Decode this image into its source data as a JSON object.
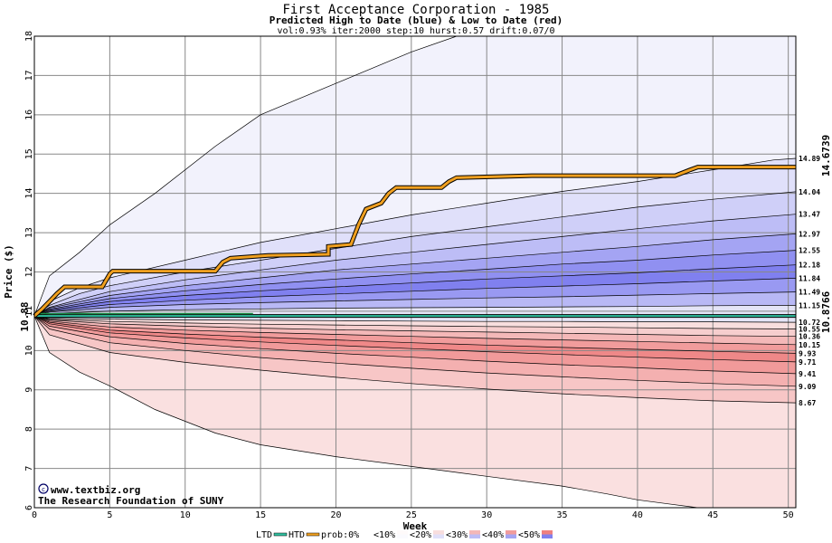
{
  "chart_data": {
    "type": "area",
    "title": "First Acceptance Corporation - 1985",
    "subtitle": "Predicted High to Date (blue) &  Low to Date (red)",
    "params": "vol:0.93% iter:2000 step:10 hurst:0.57 drift:0.07/0",
    "xlabel": "Week",
    "ylabel": "Price ($)",
    "xlim": [
      0,
      50.5
    ],
    "ylim": [
      6,
      18
    ],
    "x_ticks": [
      "0",
      "5",
      "10",
      "15",
      "20",
      "25",
      "30",
      "35",
      "40",
      "45",
      "50"
    ],
    "y_ticks": [
      "6",
      "7",
      "8",
      "9",
      "10",
      "11",
      "12",
      "13",
      "14",
      "15",
      "16",
      "17",
      "18"
    ],
    "grid": true,
    "start_price": 10.88,
    "start_price_label": "10.88",
    "high_quantiles": [
      {
        "prob": "0%",
        "label": "",
        "values": [
          [
            0,
            10.88
          ],
          [
            1,
            11.9
          ],
          [
            3,
            12.5
          ],
          [
            5,
            13.2
          ],
          [
            8,
            14
          ],
          [
            12,
            15.2
          ],
          [
            15,
            16
          ],
          [
            20,
            16.8
          ],
          [
            25,
            17.6
          ],
          [
            28,
            18
          ],
          [
            50.5,
            18
          ]
        ]
      },
      {
        "prob": "10%",
        "label": "14.89",
        "values": [
          [
            0,
            10.88
          ],
          [
            1,
            11.25
          ],
          [
            3,
            11.6
          ],
          [
            5,
            11.85
          ],
          [
            10,
            12.3
          ],
          [
            15,
            12.75
          ],
          [
            20,
            13.1
          ],
          [
            25,
            13.45
          ],
          [
            30,
            13.75
          ],
          [
            35,
            14.05
          ],
          [
            40,
            14.3
          ],
          [
            45,
            14.6
          ],
          [
            49,
            14.85
          ],
          [
            50.5,
            14.89
          ]
        ]
      },
      {
        "prob": "20%",
        "label": "14.04",
        "values": [
          [
            0,
            10.88
          ],
          [
            1,
            11.15
          ],
          [
            3,
            11.45
          ],
          [
            5,
            11.65
          ],
          [
            10,
            12
          ],
          [
            15,
            12.3
          ],
          [
            20,
            12.6
          ],
          [
            25,
            12.9
          ],
          [
            30,
            13.15
          ],
          [
            35,
            13.4
          ],
          [
            40,
            13.65
          ],
          [
            45,
            13.85
          ],
          [
            50.5,
            14.04
          ]
        ]
      },
      {
        "prob": "30%",
        "label": "13.47",
        "values": [
          [
            0,
            10.88
          ],
          [
            1,
            11.1
          ],
          [
            5,
            11.5
          ],
          [
            10,
            11.8
          ],
          [
            15,
            12.05
          ],
          [
            20,
            12.3
          ],
          [
            25,
            12.5
          ],
          [
            30,
            12.7
          ],
          [
            35,
            12.9
          ],
          [
            40,
            13.1
          ],
          [
            45,
            13.3
          ],
          [
            50.5,
            13.47
          ]
        ]
      },
      {
        "prob": "40%",
        "label": "12.97",
        "values": [
          [
            0,
            10.88
          ],
          [
            1,
            11.08
          ],
          [
            5,
            11.4
          ],
          [
            10,
            11.65
          ],
          [
            15,
            11.85
          ],
          [
            20,
            12.05
          ],
          [
            25,
            12.2
          ],
          [
            30,
            12.35
          ],
          [
            35,
            12.5
          ],
          [
            40,
            12.65
          ],
          [
            45,
            12.82
          ],
          [
            50.5,
            12.97
          ]
        ]
      },
      {
        "prob": "50%",
        "label": "12.55",
        "values": [
          [
            0,
            10.88
          ],
          [
            1,
            11.05
          ],
          [
            5,
            11.32
          ],
          [
            10,
            11.52
          ],
          [
            15,
            11.68
          ],
          [
            20,
            11.82
          ],
          [
            25,
            11.95
          ],
          [
            30,
            12.07
          ],
          [
            35,
            12.2
          ],
          [
            40,
            12.3
          ],
          [
            45,
            12.43
          ],
          [
            50.5,
            12.55
          ]
        ]
      },
      {
        "prob": "60%",
        "label": "12.18",
        "values": [
          [
            0,
            10.88
          ],
          [
            1,
            11.03
          ],
          [
            5,
            11.25
          ],
          [
            10,
            11.4
          ],
          [
            15,
            11.52
          ],
          [
            20,
            11.62
          ],
          [
            25,
            11.72
          ],
          [
            30,
            11.82
          ],
          [
            35,
            11.9
          ],
          [
            40,
            11.98
          ],
          [
            45,
            12.08
          ],
          [
            50.5,
            12.18
          ]
        ]
      },
      {
        "prob": "70%",
        "label": "11.84",
        "values": [
          [
            0,
            10.88
          ],
          [
            1,
            11.0
          ],
          [
            5,
            11.17
          ],
          [
            10,
            11.28
          ],
          [
            15,
            11.37
          ],
          [
            20,
            11.44
          ],
          [
            25,
            11.51
          ],
          [
            30,
            11.58
          ],
          [
            35,
            11.64
          ],
          [
            40,
            11.7
          ],
          [
            45,
            11.77
          ],
          [
            50.5,
            11.84
          ]
        ]
      },
      {
        "prob": "80%",
        "label": "11.49",
        "values": [
          [
            0,
            10.88
          ],
          [
            1,
            10.98
          ],
          [
            5,
            11.1
          ],
          [
            10,
            11.17
          ],
          [
            15,
            11.22
          ],
          [
            20,
            11.26
          ],
          [
            25,
            11.3
          ],
          [
            30,
            11.34
          ],
          [
            35,
            11.37
          ],
          [
            40,
            11.41
          ],
          [
            45,
            11.45
          ],
          [
            50.5,
            11.49
          ]
        ]
      },
      {
        "prob": "90%",
        "label": "11.15",
        "values": [
          [
            0,
            10.88
          ],
          [
            1,
            10.94
          ],
          [
            5,
            11.0
          ],
          [
            10,
            11.04
          ],
          [
            15,
            11.06
          ],
          [
            20,
            11.08
          ],
          [
            25,
            11.09
          ],
          [
            30,
            11.1
          ],
          [
            35,
            11.11
          ],
          [
            40,
            11.12
          ],
          [
            45,
            11.14
          ],
          [
            50.5,
            11.15
          ]
        ]
      }
    ],
    "low_quantiles": [
      {
        "prob": "90%",
        "label": "10.72",
        "values": [
          [
            0,
            10.88
          ],
          [
            1,
            10.82
          ],
          [
            5,
            10.8
          ],
          [
            10,
            10.78
          ],
          [
            15,
            10.77
          ],
          [
            20,
            10.76
          ],
          [
            25,
            10.75
          ],
          [
            30,
            10.74
          ],
          [
            35,
            10.74
          ],
          [
            40,
            10.73
          ],
          [
            45,
            10.73
          ],
          [
            50.5,
            10.72
          ]
        ]
      },
      {
        "prob": "80%",
        "label": "10.55",
        "values": [
          [
            0,
            10.88
          ],
          [
            1,
            10.8
          ],
          [
            5,
            10.74
          ],
          [
            10,
            10.7
          ],
          [
            15,
            10.67
          ],
          [
            20,
            10.65
          ],
          [
            25,
            10.63
          ],
          [
            30,
            10.61
          ],
          [
            35,
            10.6
          ],
          [
            40,
            10.58
          ],
          [
            45,
            10.56
          ],
          [
            50.5,
            10.55
          ]
        ]
      },
      {
        "prob": "70%",
        "label": "10.36",
        "values": [
          [
            0,
            10.88
          ],
          [
            1,
            10.78
          ],
          [
            5,
            10.68
          ],
          [
            10,
            10.62
          ],
          [
            15,
            10.57
          ],
          [
            20,
            10.53
          ],
          [
            25,
            10.5
          ],
          [
            30,
            10.47
          ],
          [
            35,
            10.44
          ],
          [
            40,
            10.41
          ],
          [
            45,
            10.38
          ],
          [
            50.5,
            10.36
          ]
        ]
      },
      {
        "prob": "60%",
        "label": "10.15",
        "values": [
          [
            0,
            10.88
          ],
          [
            1,
            10.75
          ],
          [
            5,
            10.6
          ],
          [
            10,
            10.52
          ],
          [
            15,
            10.46
          ],
          [
            20,
            10.41
          ],
          [
            25,
            10.36
          ],
          [
            30,
            10.31
          ],
          [
            35,
            10.27
          ],
          [
            40,
            10.23
          ],
          [
            45,
            10.19
          ],
          [
            50.5,
            10.15
          ]
        ]
      },
      {
        "prob": "50%",
        "label": "9.93",
        "values": [
          [
            0,
            10.88
          ],
          [
            1,
            10.72
          ],
          [
            5,
            10.52
          ],
          [
            10,
            10.42
          ],
          [
            15,
            10.34
          ],
          [
            20,
            10.27
          ],
          [
            25,
            10.2
          ],
          [
            30,
            10.14
          ],
          [
            35,
            10.08
          ],
          [
            40,
            10.03
          ],
          [
            45,
            9.98
          ],
          [
            50.5,
            9.93
          ]
        ]
      },
      {
        "prob": "40%",
        "label": "9.71",
        "values": [
          [
            0,
            10.88
          ],
          [
            1,
            10.68
          ],
          [
            5,
            10.45
          ],
          [
            10,
            10.32
          ],
          [
            15,
            10.22
          ],
          [
            20,
            10.13
          ],
          [
            25,
            10.05
          ],
          [
            30,
            9.97
          ],
          [
            35,
            9.9
          ],
          [
            40,
            9.83
          ],
          [
            45,
            9.77
          ],
          [
            50.5,
            9.71
          ]
        ]
      },
      {
        "prob": "30%",
        "label": "9.41",
        "values": [
          [
            0,
            10.88
          ],
          [
            1,
            10.62
          ],
          [
            5,
            10.35
          ],
          [
            10,
            10.18
          ],
          [
            15,
            10.05
          ],
          [
            20,
            9.93
          ],
          [
            25,
            9.83
          ],
          [
            30,
            9.73
          ],
          [
            35,
            9.64
          ],
          [
            40,
            9.56
          ],
          [
            45,
            9.48
          ],
          [
            50.5,
            9.41
          ]
        ]
      },
      {
        "prob": "20%",
        "label": "9.09",
        "values": [
          [
            0,
            10.88
          ],
          [
            1,
            10.55
          ],
          [
            5,
            10.2
          ],
          [
            10,
            10.0
          ],
          [
            15,
            9.82
          ],
          [
            20,
            9.68
          ],
          [
            25,
            9.55
          ],
          [
            30,
            9.43
          ],
          [
            35,
            9.33
          ],
          [
            40,
            9.24
          ],
          [
            45,
            9.16
          ],
          [
            50.5,
            9.09
          ]
        ]
      },
      {
        "prob": "10%",
        "label": "8.67",
        "values": [
          [
            0,
            10.88
          ],
          [
            1,
            10.4
          ],
          [
            5,
            9.95
          ],
          [
            10,
            9.7
          ],
          [
            15,
            9.5
          ],
          [
            20,
            9.32
          ],
          [
            25,
            9.16
          ],
          [
            30,
            9.02
          ],
          [
            35,
            8.9
          ],
          [
            40,
            8.8
          ],
          [
            45,
            8.72
          ],
          [
            50.5,
            8.67
          ]
        ]
      },
      {
        "prob": "0%",
        "label": "",
        "values": [
          [
            0,
            10.88
          ],
          [
            1,
            9.95
          ],
          [
            3,
            9.45
          ],
          [
            5,
            9.1
          ],
          [
            8,
            8.5
          ],
          [
            12,
            7.9
          ],
          [
            15,
            7.6
          ],
          [
            20,
            7.3
          ],
          [
            25,
            7.05
          ],
          [
            30,
            6.8
          ],
          [
            35,
            6.55
          ],
          [
            38,
            6.35
          ],
          [
            40,
            6.2
          ],
          [
            42,
            6.1
          ],
          [
            44,
            6
          ],
          [
            50.5,
            6
          ]
        ]
      }
    ],
    "htd_line": {
      "label": "14.6739",
      "values": [
        [
          0,
          10.88
        ],
        [
          0.5,
          11.05
        ],
        [
          1,
          11.25
        ],
        [
          1.5,
          11.45
        ],
        [
          2,
          11.62
        ],
        [
          4.5,
          11.62
        ],
        [
          5,
          11.95
        ],
        [
          5.2,
          12.02
        ],
        [
          12,
          12.02
        ],
        [
          12.5,
          12.25
        ],
        [
          13,
          12.35
        ],
        [
          15.5,
          12.42
        ],
        [
          19.5,
          12.45
        ],
        [
          19.5,
          12.65
        ],
        [
          21,
          12.7
        ],
        [
          21.5,
          13.2
        ],
        [
          22,
          13.6
        ],
        [
          23,
          13.75
        ],
        [
          23.5,
          14.0
        ],
        [
          24,
          14.15
        ],
        [
          27,
          14.15
        ],
        [
          27.5,
          14.3
        ],
        [
          28,
          14.4
        ],
        [
          33,
          14.45
        ],
        [
          42.5,
          14.45
        ],
        [
          43.5,
          14.6
        ],
        [
          44,
          14.67
        ],
        [
          50.5,
          14.67
        ]
      ]
    },
    "ltd_line": {
      "label": "10.8766",
      "values": [
        [
          0,
          10.88
        ],
        [
          50.5,
          10.88
        ]
      ]
    },
    "ltd_short_line": {
      "values": [
        [
          0,
          10.94
        ],
        [
          14.5,
          10.94
        ]
      ]
    },
    "legend": {
      "ltd": "LTD",
      "htd": "HTD",
      "prob": "prob:0%",
      "items": [
        "<10%",
        "<20%",
        "<30%",
        "<40%",
        "<50%"
      ]
    },
    "credit_1": "www.textbiz.org",
    "credit_2": "The Research Foundation of SUNY",
    "colors": {
      "high_bands": [
        "#f2f2fc",
        "#e0e0fa",
        "#cfcff8",
        "#bdbdf6",
        "#a4a4f3",
        "#9090f1",
        "#8080ef",
        "#9999f2",
        "#b8b8f5",
        "#d0d0f8"
      ],
      "low_bands": [
        "#f8dede",
        "#f6cece",
        "#f4b8b8",
        "#f19c9c",
        "#ef8888",
        "#f19a9a",
        "#f4b0b0",
        "#f7c6c6",
        "#fae0e0",
        "#fdf2f2"
      ],
      "htd": "#f0a020",
      "ltd": "#30c0a0",
      "start_label": "#006600",
      "htd_label": "#aa7700",
      "ltd_label": "#008855",
      "credit": "#000066"
    }
  }
}
